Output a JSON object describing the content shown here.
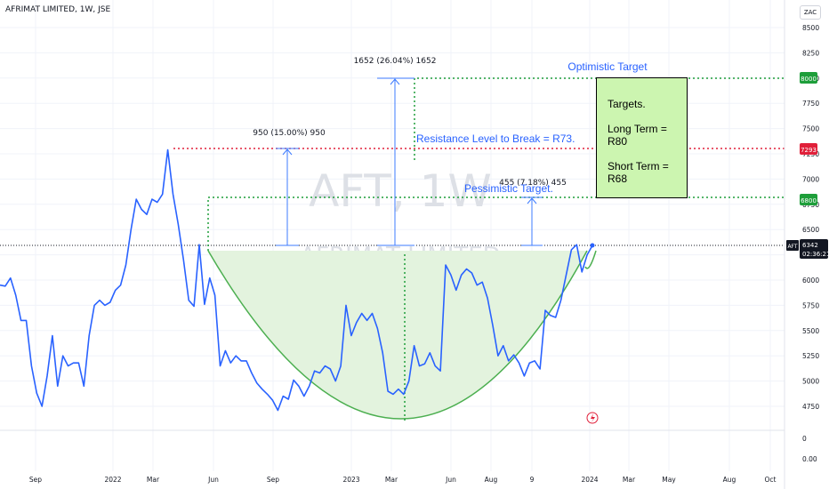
{
  "header": {
    "title": "AFRIMAT LIMITED, 1W, JSE"
  },
  "scale_button": "ZAC",
  "watermark": {
    "symbol": "AFT, 1W",
    "name": "AFRIMAT LIMITED"
  },
  "annotations": {
    "optimistic_label": "Optimistic Target",
    "resistance_label": "Resistance Level to Break = R73.",
    "pessimistic_label": "Pessimistic Target.",
    "measure_950": "950 (15.00%) 950",
    "measure_1652": "1652 (26.04%) 1652",
    "measure_455": "455 (7.18%) 455"
  },
  "targets_box": {
    "title": "Targets.",
    "long_term": "Long Term = R80",
    "short_term": "Short Term = R68"
  },
  "price_tags": {
    "optimistic": "8000",
    "resistance": "7293",
    "pessimistic": "6800",
    "symbol": "AFT",
    "last": "6342",
    "countdown": "02:36:21"
  },
  "colors": {
    "price_line": "#2962ff",
    "cup_fill": "#e3f3de",
    "cup_stroke": "#4caf50",
    "target_green": "#1e9e3a",
    "resistance_red": "#e0203a",
    "measure_blue": "#3d7bff",
    "text_blue": "#2962ff",
    "box_fill": "#ccf5b0"
  },
  "chart_data": {
    "type": "line",
    "title": "AFRIMAT LIMITED, 1W, JSE",
    "xlabel": "",
    "ylabel": "",
    "x_ticks": [
      "Sep",
      "2022",
      "Mar",
      "Jun",
      "Sep",
      "2023",
      "Mar",
      "Jun",
      "Aug",
      "9",
      "2024",
      "Mar",
      "May",
      "Aug",
      "Oct"
    ],
    "y_ticks": [
      8500,
      8250,
      8000,
      7750,
      7500,
      7250,
      7000,
      6750,
      6500,
      6250,
      6000,
      5750,
      5500,
      5250,
      5000,
      4750
    ],
    "y_ticks_extra": [
      "0",
      "0.00"
    ],
    "ylim": [
      4650,
      8550
    ],
    "grid": true,
    "series": [
      {
        "values": [
          5950,
          5940,
          6020,
          5850,
          5600,
          5600,
          5150,
          4880,
          4750,
          5050,
          5450,
          4950,
          5250,
          5150,
          5180,
          5180,
          4950,
          5450,
          5750,
          5800,
          5750,
          5780,
          5900,
          5950,
          6150,
          6500,
          6800,
          6700,
          6650,
          6800,
          6770,
          6850,
          7290,
          6850,
          6550,
          6200,
          5800,
          5740,
          6350,
          5760,
          6020,
          5850,
          5150,
          5300,
          5180,
          5250,
          5200,
          5200,
          5080,
          4980,
          4920,
          4870,
          4810,
          4710,
          4850,
          4820,
          5010,
          4950,
          4850,
          4950,
          5100,
          5080,
          5150,
          5120,
          5000,
          5150,
          5750,
          5450,
          5580,
          5670,
          5600,
          5670,
          5520,
          5280,
          4900,
          4870,
          4920,
          4870,
          5000,
          5350,
          5150,
          5170,
          5280,
          5150,
          5100,
          6150,
          6050,
          5900,
          6050,
          6110,
          6070,
          5950,
          5980,
          5820,
          5550,
          5250,
          5350,
          5200,
          5260,
          5180,
          5050,
          5180,
          5200,
          5120,
          5700,
          5650,
          5630,
          5800,
          6050,
          6300,
          6350,
          6080,
          6250,
          6342
        ]
      }
    ],
    "annotations": {
      "resistance_level": 7293,
      "optimistic_target": 8000,
      "pessimistic_target": 6800,
      "current_price": 6342
    }
  }
}
